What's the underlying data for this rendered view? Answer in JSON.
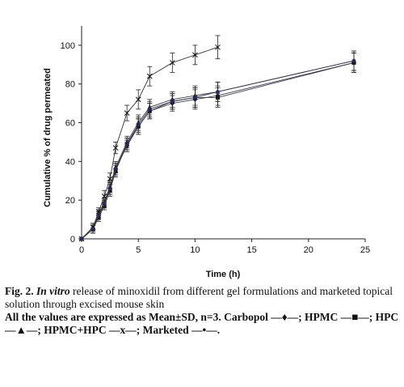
{
  "caption": {
    "fig_label": "Fig. 2.",
    "italic_part": "In vitro",
    "rest": "release of minoxidil from different gel formulations and marketed topical solution through excised mouse skin",
    "notes": "All the values are expressed as Mean±SD, n=3. Carbopol —♦—; HPMC —■—; HPC —▲—; HPMC+HPC —x—; Marketed —•—."
  },
  "chart_data": {
    "type": "line",
    "xlabel": "Time (h)",
    "ylabel": "Cumulative % of drug permeated",
    "xlim": [
      0,
      25
    ],
    "ylim": [
      0,
      110
    ],
    "xticks": [
      0,
      5,
      10,
      15,
      20,
      25
    ],
    "yticks": [
      0,
      20,
      40,
      60,
      80,
      100
    ],
    "grid": false,
    "series": [
      {
        "marker": "diamond",
        "x": [
          0,
          1,
          1.5,
          2,
          2.5,
          3,
          4,
          5,
          6,
          8,
          10,
          12,
          24
        ],
        "y": [
          0,
          5,
          12,
          18,
          26,
          36,
          48,
          58,
          66,
          70,
          72,
          74,
          91
        ],
        "err": [
          0,
          2,
          2,
          2,
          3,
          3,
          3,
          4,
          4,
          4,
          5,
          5,
          5
        ]
      },
      {
        "marker": "square",
        "x": [
          0,
          1,
          1.5,
          2,
          2.5,
          3,
          4,
          5,
          6,
          8,
          10,
          12,
          24
        ],
        "y": [
          0,
          5,
          11,
          17,
          25,
          35,
          49,
          58,
          66,
          71,
          73,
          73,
          91
        ],
        "err": [
          0,
          2,
          2,
          2,
          3,
          3,
          3,
          4,
          4,
          4,
          5,
          5,
          5
        ]
      },
      {
        "marker": "triangle",
        "x": [
          0,
          1,
          1.5,
          2,
          2.5,
          3,
          4,
          5,
          6,
          8,
          10,
          12,
          24
        ],
        "y": [
          0,
          6,
          13,
          19,
          27,
          37,
          50,
          60,
          68,
          72,
          74,
          76,
          92
        ],
        "err": [
          0,
          2,
          2,
          2,
          3,
          3,
          3,
          4,
          4,
          4,
          5,
          5,
          5
        ]
      },
      {
        "marker": "x",
        "x": [
          0,
          1,
          1.5,
          2,
          2.5,
          3,
          4,
          5,
          6,
          8,
          10,
          12
        ],
        "y": [
          0,
          6,
          14,
          22,
          31,
          47,
          65,
          72,
          84,
          91,
          95,
          99
        ],
        "err": [
          0,
          2,
          2,
          3,
          3,
          3,
          4,
          5,
          5,
          5,
          5,
          6
        ]
      },
      {
        "marker": "dot",
        "x": [
          0,
          1,
          1.5,
          2,
          2.5,
          3,
          4,
          5,
          6,
          8,
          10,
          12,
          24
        ],
        "y": [
          0,
          5,
          12,
          18,
          26,
          36,
          49,
          59,
          67,
          71,
          73,
          76,
          92
        ],
        "err": [
          0,
          2,
          2,
          2,
          3,
          3,
          3,
          4,
          4,
          4,
          5,
          5,
          5
        ]
      }
    ]
  }
}
